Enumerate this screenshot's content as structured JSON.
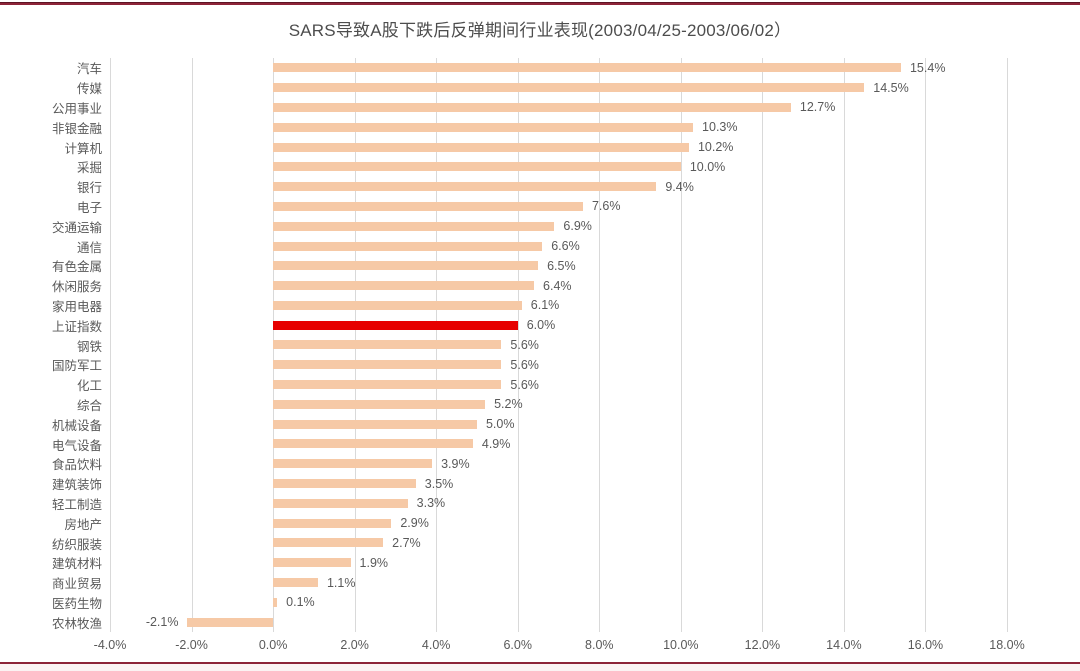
{
  "page": {
    "background": "#ffffff",
    "border_line_color": "#8d2438"
  },
  "chart_data": {
    "type": "bar",
    "orientation": "horizontal",
    "title": "SARS导致A股下跌后反弹期间行业表现(2003/04/25-2003/06/02）",
    "categories": [
      "汽车",
      "传媒",
      "公用事业",
      "非银金融",
      "计算机",
      "采掘",
      "银行",
      "电子",
      "交通运输",
      "通信",
      "有色金属",
      "休闲服务",
      "家用电器",
      "上证指数",
      "钢铁",
      "国防军工",
      "化工",
      "综合",
      "机械设备",
      "电气设备",
      "食品饮料",
      "建筑装饰",
      "轻工制造",
      "房地产",
      "纺织服装",
      "建筑材料",
      "商业贸易",
      "医药生物",
      "农林牧渔"
    ],
    "values": [
      15.4,
      14.5,
      12.7,
      10.3,
      10.2,
      10.0,
      9.4,
      7.6,
      6.9,
      6.6,
      6.5,
      6.4,
      6.1,
      6.0,
      5.6,
      5.6,
      5.6,
      5.2,
      5.0,
      4.9,
      3.9,
      3.5,
      3.3,
      2.9,
      2.7,
      1.9,
      1.1,
      0.1,
      -2.1
    ],
    "value_labels": [
      "15.4%",
      "14.5%",
      "12.7%",
      "10.3%",
      "10.2%",
      "10.0%",
      "9.4%",
      "7.6%",
      "6.9%",
      "6.6%",
      "6.5%",
      "6.4%",
      "6.1%",
      "6.0%",
      "5.6%",
      "5.6%",
      "5.6%",
      "5.2%",
      "5.0%",
      "4.9%",
      "3.9%",
      "3.5%",
      "3.3%",
      "2.9%",
      "2.7%",
      "1.9%",
      "1.1%",
      "0.1%",
      "-2.1%"
    ],
    "highlight_category": "上证指数",
    "highlight_index": 13,
    "bar_color": "#f6c9a6",
    "highlight_color": "#e60000",
    "x_ticks": [
      "-4.0%",
      "-2.0%",
      "0.0%",
      "2.0%",
      "4.0%",
      "6.0%",
      "8.0%",
      "10.0%",
      "12.0%",
      "14.0%",
      "16.0%",
      "18.0%"
    ],
    "x_tick_values": [
      -4,
      -2,
      0,
      2,
      4,
      6,
      8,
      10,
      12,
      14,
      16,
      18
    ],
    "xlim": [
      -4,
      18
    ],
    "xlabel": "",
    "ylabel": "",
    "grid": "vertical",
    "legend": "none"
  }
}
